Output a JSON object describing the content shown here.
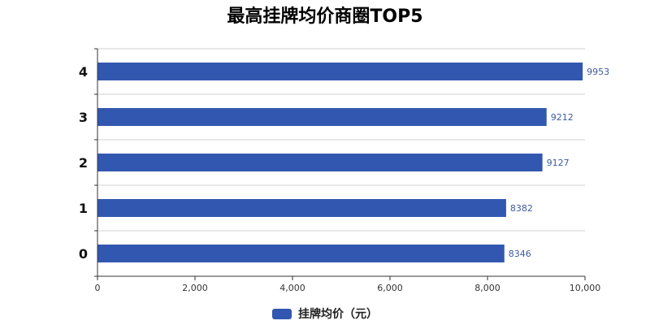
{
  "chart_data": {
    "type": "bar",
    "orientation": "horizontal",
    "title": "最高挂牌均价商圈TOP5",
    "categories": [
      "4",
      "3",
      "2",
      "1",
      "0"
    ],
    "series": [
      {
        "name": "挂牌均价（元）",
        "values": [
          9953,
          9212,
          9127,
          8382,
          8346
        ]
      }
    ],
    "xlim": [
      0,
      10000
    ],
    "x_ticks": [
      0,
      2000,
      4000,
      6000,
      8000,
      10000
    ],
    "x_tick_labels": [
      "0",
      "2,000",
      "4,000",
      "6,000",
      "8,000",
      "10,000"
    ],
    "grid": true,
    "legend_position": "bottom",
    "bar_color": "#3257b0",
    "label_color": "#3d5a9e"
  }
}
